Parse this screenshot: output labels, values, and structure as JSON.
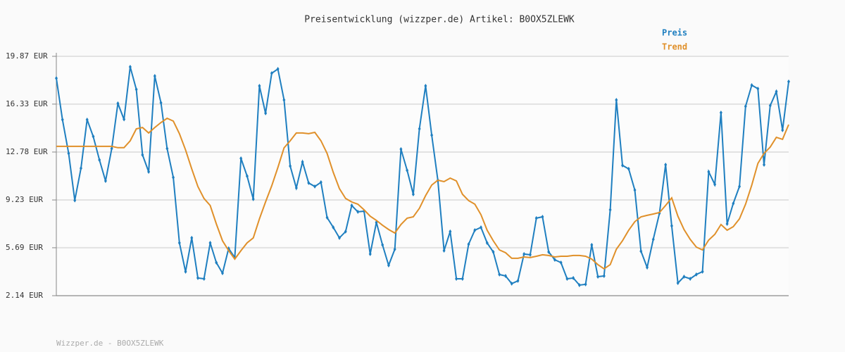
{
  "chart_data": {
    "type": "line",
    "title": "Preisentwicklung (wizzper.de) Artikel: B0OX5ZLEWK",
    "footer": "Wizzper.de - B0OX5ZLEWK",
    "ylim": [
      2.14,
      19.87
    ],
    "yticks": [
      {
        "value": 2.14,
        "label": "2.14 EUR"
      },
      {
        "value": 5.69,
        "label": "5.69 EUR"
      },
      {
        "value": 9.23,
        "label": "9.23 EUR"
      },
      {
        "value": 12.78,
        "label": "12.78 EUR"
      },
      {
        "value": 16.33,
        "label": "16.33 EUR"
      },
      {
        "value": 19.87,
        "label": "19.87 EUR"
      }
    ],
    "grid": true,
    "legend": "top-right",
    "series": [
      {
        "name": "Preis",
        "color": "#1f7fc0",
        "markers": true,
        "values": [
          18.25,
          15.18,
          12.68,
          9.2,
          11.58,
          15.18,
          13.93,
          12.2,
          10.64,
          13.04,
          16.38,
          15.2,
          19.09,
          17.42,
          12.57,
          11.32,
          18.41,
          16.43,
          13.04,
          10.9,
          6.05,
          3.92,
          6.42,
          3.45,
          3.39,
          6.05,
          4.59,
          3.81,
          5.64,
          4.96,
          12.31,
          11.0,
          9.29,
          17.68,
          15.65,
          18.62,
          18.93,
          16.64,
          11.74,
          10.12,
          12.05,
          10.49,
          10.23,
          10.54,
          7.93,
          7.2,
          6.42,
          6.89,
          8.82,
          8.35,
          8.4,
          5.22,
          7.57,
          5.9,
          4.39,
          5.58,
          12.99,
          11.42,
          9.65,
          14.5,
          17.68,
          14.03,
          10.69,
          5.48,
          6.89,
          3.39,
          3.39,
          5.95,
          6.99,
          7.2,
          6.05,
          5.38,
          3.71,
          3.6,
          3.03,
          3.24,
          5.22,
          5.17,
          7.88,
          7.98,
          5.38,
          4.8,
          4.59,
          3.39,
          3.45,
          2.92,
          2.98,
          5.9,
          3.55,
          3.6,
          8.5,
          16.64,
          11.79,
          11.53,
          9.96,
          5.43,
          4.23,
          6.31,
          8.24,
          11.84,
          7.31,
          3.08,
          3.55,
          3.39,
          3.71,
          3.92,
          11.32,
          10.38,
          15.7,
          7.46,
          8.97,
          10.23,
          16.17,
          17.73,
          17.47,
          11.84,
          16.22,
          17.26,
          14.4,
          18.0
        ]
      },
      {
        "name": "Trend",
        "color": "#e0902a",
        "markers": false,
        "values": [
          13.2,
          13.2,
          13.2,
          13.2,
          13.2,
          13.2,
          13.2,
          13.2,
          13.2,
          13.2,
          13.1,
          13.1,
          13.61,
          14.5,
          14.6,
          14.19,
          14.6,
          14.97,
          15.28,
          15.07,
          14.14,
          12.94,
          11.53,
          10.23,
          9.34,
          8.82,
          7.46,
          6.21,
          5.48,
          4.85,
          5.48,
          6.05,
          6.42,
          7.83,
          9.08,
          10.28,
          11.63,
          13.09,
          13.61,
          14.19,
          14.19,
          14.14,
          14.24,
          13.61,
          12.68,
          11.27,
          10.07,
          9.34,
          9.08,
          8.92,
          8.5,
          8.03,
          7.72,
          7.36,
          7.04,
          6.78,
          7.41,
          7.88,
          7.98,
          8.61,
          9.55,
          10.33,
          10.69,
          10.59,
          10.85,
          10.64,
          9.65,
          9.18,
          8.92,
          8.14,
          6.99,
          6.21,
          5.53,
          5.32,
          4.91,
          4.91,
          5.01,
          4.96,
          5.06,
          5.17,
          5.12,
          5.01,
          5.06,
          5.06,
          5.12,
          5.12,
          5.06,
          4.85,
          4.44,
          4.13,
          4.44,
          5.58,
          6.21,
          6.99,
          7.62,
          7.98,
          8.09,
          8.19,
          8.3,
          8.82,
          9.39,
          8.03,
          7.04,
          6.31,
          5.74,
          5.53,
          6.26,
          6.68,
          7.41,
          6.99,
          7.25,
          7.83,
          8.92,
          10.33,
          11.94,
          12.68,
          13.15,
          13.87,
          13.72,
          14.81
        ]
      }
    ]
  }
}
